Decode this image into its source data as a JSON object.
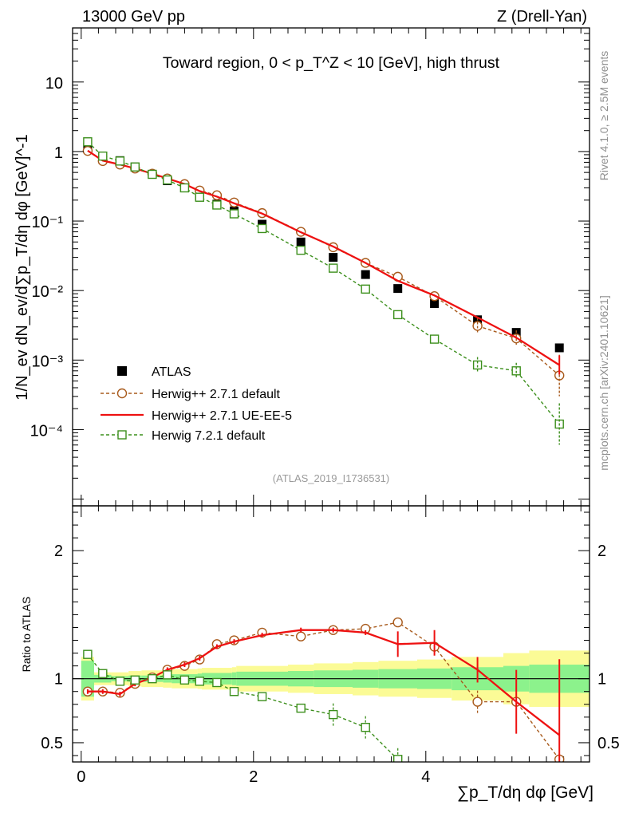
{
  "header": {
    "left": "13000 GeV pp",
    "right": "Z (Drell-Yan)"
  },
  "side": {
    "rivet": "Rivet 4.1.0, ≥ 2.5M events",
    "mcplots": "mcplots.cern.ch [arXiv:2401.10621]"
  },
  "chart_data": [
    {
      "panel": "main",
      "type": "scatter",
      "title": "Toward region, 0 < p_T^Z < 10 [GeV], high thrust",
      "ylabel": "1/N_ev dN_ev/d∑p_T/dη dφ [GeV]^-1",
      "analysis": "(ATLAS_2019_I1736531)",
      "yscale": "log",
      "xlim": [
        -0.1,
        5.9
      ],
      "ylim": [
        8e-06,
        60
      ],
      "x": [
        0.075,
        0.25,
        0.45,
        0.625,
        0.825,
        1.0,
        1.2,
        1.375,
        1.575,
        1.775,
        2.1,
        2.55,
        2.925,
        3.3,
        3.675,
        4.1,
        4.6,
        5.05,
        5.55
      ],
      "yticks": [
        {
          "value": 0.0001,
          "label": "10⁻⁴"
        },
        {
          "value": 0.001,
          "label": "10⁻³"
        },
        {
          "value": 0.01,
          "label": "10⁻²"
        },
        {
          "value": 0.1,
          "label": "10⁻¹"
        },
        {
          "value": 1,
          "label": "1"
        },
        {
          "value": 10,
          "label": "10"
        }
      ],
      "series": [
        {
          "name": "ATLAS",
          "style": "data",
          "color": "#000000",
          "values": [
            1.15,
            0.82,
            0.74,
            0.6,
            0.47,
            0.38,
            0.3,
            0.225,
            0.175,
            0.14,
            0.09,
            0.05,
            0.03,
            0.017,
            0.0107,
            0.0065,
            0.0038,
            0.0025,
            0.0015
          ]
        },
        {
          "name": "Herwig++ 2.7.1 default",
          "style": "circle-dashed",
          "color": "#a85a1c",
          "values": [
            1.02,
            0.73,
            0.65,
            0.57,
            0.48,
            0.41,
            0.34,
            0.275,
            0.235,
            0.185,
            0.13,
            0.07,
            0.042,
            0.025,
            0.0158,
            0.0083,
            0.0031,
            0.00205,
            0.0006
          ]
        },
        {
          "name": "Herwig++ 2.7.1 UE-EE-5",
          "style": "line",
          "color": "#ee1111",
          "values": [
            1.03,
            0.74,
            0.65,
            0.57,
            0.48,
            0.41,
            0.34,
            0.27,
            0.225,
            0.18,
            0.128,
            0.069,
            0.043,
            0.025,
            0.0138,
            0.0085,
            0.0041,
            0.0021,
            0.00085
          ]
        },
        {
          "name": "Herwig 7.2.1 default",
          "style": "square-dashed",
          "color": "#3c8f1c",
          "values": [
            1.38,
            0.86,
            0.73,
            0.6,
            0.47,
            0.39,
            0.3,
            0.22,
            0.17,
            0.127,
            0.078,
            0.038,
            0.021,
            0.0105,
            0.0045,
            0.002,
            0.00085,
            0.0007,
            0.00012
          ]
        }
      ]
    },
    {
      "panel": "ratio",
      "type": "line",
      "ylabel": "Ratio to ATLAS",
      "xlabel": "∑p_T/dη dφ [GeV]",
      "xlim": [
        -0.1,
        5.9
      ],
      "ylim": [
        0.35,
        2.35
      ],
      "xticks": [
        {
          "value": 0,
          "label": "0"
        },
        {
          "value": 2,
          "label": "2"
        },
        {
          "value": 4,
          "label": "4"
        }
      ],
      "yticks": [
        {
          "value": 0.5,
          "label": "0.5"
        },
        {
          "value": 1,
          "label": "1"
        },
        {
          "value": 2,
          "label": "2"
        }
      ],
      "bin_edges": [
        0.0,
        0.15,
        0.35,
        0.55,
        0.7,
        0.95,
        1.05,
        1.35,
        1.4,
        1.75,
        1.8,
        2.4,
        2.7,
        3.15,
        3.45,
        3.9,
        4.3,
        4.9,
        5.2,
        5.9
      ],
      "band_inner": [
        0.14,
        0.03,
        0.02,
        0.025,
        0.025,
        0.03,
        0.035,
        0.04,
        0.045,
        0.05,
        0.055,
        0.06,
        0.065,
        0.07,
        0.075,
        0.08,
        0.09,
        0.1,
        0.11
      ],
      "band_outer": [
        0.17,
        0.05,
        0.05,
        0.06,
        0.065,
        0.07,
        0.075,
        0.08,
        0.085,
        0.09,
        0.1,
        0.11,
        0.12,
        0.13,
        0.14,
        0.15,
        0.17,
        0.2,
        0.22
      ],
      "series": [
        {
          "name": "Herwig++ 2.7.1 default",
          "color": "#a85a1c",
          "values": [
            0.9,
            0.9,
            0.89,
            0.96,
            1.01,
            1.07,
            1.1,
            1.15,
            1.27,
            1.3,
            1.36,
            1.33,
            1.38,
            1.39,
            1.44,
            1.25,
            0.82,
            0.82,
            0.37
          ]
        },
        {
          "name": "Herwig++ 2.7.1 UE-EE-5",
          "color": "#ee1111",
          "values": [
            0.9,
            0.9,
            0.88,
            0.96,
            1.01,
            1.07,
            1.11,
            1.16,
            1.25,
            1.29,
            1.34,
            1.38,
            1.38,
            1.36,
            1.27,
            1.28,
            1.07,
            0.82,
            0.56
          ]
        },
        {
          "name": "Herwig 7.2.1 default",
          "color": "#3c8f1c",
          "values": [
            1.19,
            1.04,
            0.98,
            0.99,
            1.0,
            1.03,
            0.99,
            0.98,
            0.97,
            0.9,
            0.86,
            0.77,
            0.72,
            0.62,
            0.37
          ]
        }
      ]
    }
  ]
}
